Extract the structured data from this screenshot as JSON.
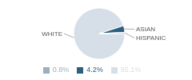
{
  "chart_data": {
    "type": "pie",
    "categories": [
      "WHITE",
      "ASIAN",
      "HISPANIC"
    ],
    "values": [
      95.1,
      4.2,
      0.8
    ],
    "value_labels": [
      "95.1%",
      "4.2%",
      "0.8%"
    ],
    "colors": [
      "#d6dfe8",
      "#2e5f7e",
      "#9ab0bf"
    ],
    "legend": "bottom"
  }
}
